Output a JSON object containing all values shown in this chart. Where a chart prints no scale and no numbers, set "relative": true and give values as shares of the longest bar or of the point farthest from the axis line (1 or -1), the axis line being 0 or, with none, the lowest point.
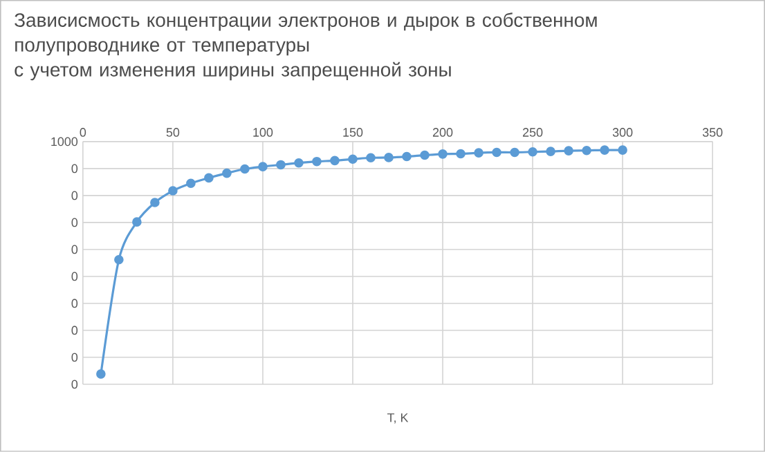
{
  "chart_data": {
    "type": "line",
    "title": "Зависисмость концентрации электронов и дырок в собственном полупроводнике от температуры",
    "subtitle": "с учетом изменения ширины запрещенной зоны",
    "xlabel": "T, K",
    "x": [
      10,
      20,
      30,
      40,
      50,
      60,
      70,
      80,
      90,
      100,
      110,
      120,
      130,
      140,
      150,
      160,
      170,
      180,
      190,
      200,
      210,
      220,
      230,
      240,
      250,
      260,
      270,
      280,
      290,
      300
    ],
    "series": [
      {
        "color": "#5b9bd5",
        "values": [
          0.044,
          0.532,
          0.693,
          0.776,
          0.826,
          0.858,
          0.881,
          0.901,
          0.919,
          0.929,
          0.937,
          0.945,
          0.951,
          0.955,
          0.961,
          0.967,
          0.968,
          0.972,
          0.978,
          0.983,
          0.984,
          0.988,
          0.99,
          0.99,
          0.992,
          0.994,
          0.997,
          0.998,
          1,
          1
        ]
      }
    ],
    "relative": true,
    "xlim": [
      0,
      350
    ],
    "xticks": [
      0,
      50,
      100,
      150,
      200,
      250,
      300,
      350
    ],
    "annotations": [
      "1000",
      "0",
      "0",
      "0",
      "0",
      "0",
      "0",
      "0",
      "0",
      "0"
    ],
    "grid": true,
    "marker": "circle",
    "line_style": "solid"
  }
}
